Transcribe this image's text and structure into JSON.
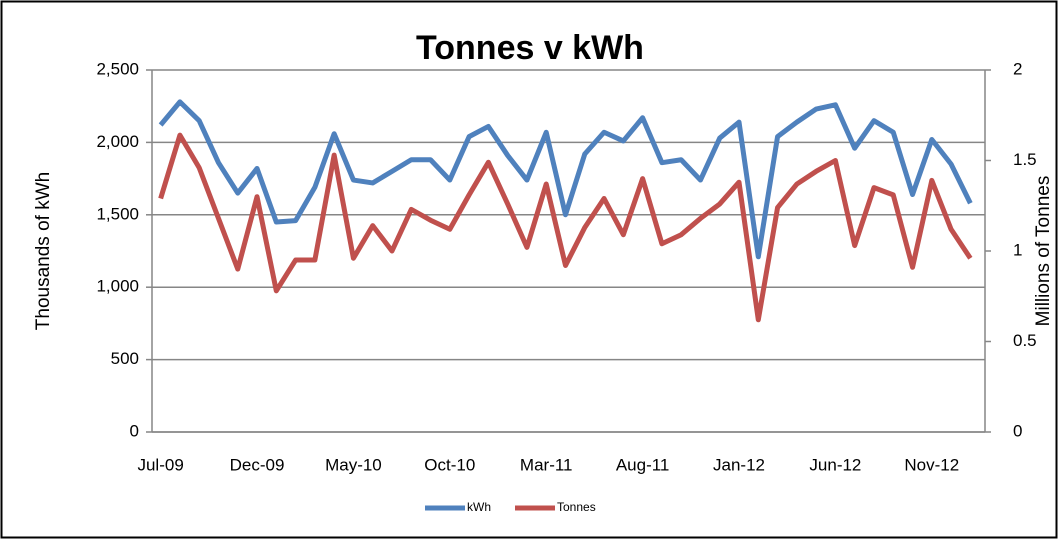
{
  "chart_data": {
    "type": "line",
    "title": "Tonnes v kWh",
    "y_label": "Thousands of kWh",
    "y2_label": "Millions of Tonnes",
    "categories": [
      "Jul-09",
      null,
      null,
      null,
      null,
      "Dec-09",
      null,
      null,
      null,
      null,
      "May-10",
      null,
      null,
      null,
      null,
      "Oct-10",
      null,
      null,
      null,
      null,
      "Mar-11",
      null,
      null,
      null,
      null,
      "Aug-11",
      null,
      null,
      null,
      null,
      "Jan-12",
      null,
      null,
      null,
      null,
      "Jun-12",
      null,
      null,
      null,
      null,
      "Nov-12",
      null,
      null
    ],
    "series": [
      {
        "name": "kWh",
        "color": "#4f81bd",
        "values": [
          2120,
          2280,
          2150,
          1860,
          1650,
          1820,
          1450,
          1460,
          1690,
          2060,
          1740,
          1720,
          1800,
          1880,
          1880,
          1740,
          2040,
          2110,
          1910,
          1740,
          2070,
          1500,
          1920,
          2070,
          2010,
          2170,
          1860,
          1880,
          1740,
          2030,
          2140,
          1210,
          2040,
          2140,
          2230,
          2260,
          1960,
          2150,
          2070,
          1640,
          2020,
          1850,
          1580
        ]
      },
      {
        "name": "Tonnes",
        "color": "#c0504d",
        "axis": "y2",
        "values": [
          1.29,
          1.64,
          1.46,
          1.18,
          0.9,
          1.3,
          0.78,
          0.95,
          0.95,
          1.53,
          0.96,
          1.14,
          1.0,
          1.23,
          1.17,
          1.12,
          1.31,
          1.49,
          1.26,
          1.02,
          1.37,
          0.92,
          1.13,
          1.29,
          1.09,
          1.4,
          1.04,
          1.09,
          1.18,
          1.26,
          1.38,
          0.62,
          1.24,
          1.37,
          1.44,
          1.5,
          1.03,
          1.35,
          1.31,
          0.91,
          1.39,
          1.12,
          0.96
        ]
      }
    ],
    "ylim": [
      0,
      2500
    ],
    "yticks": [
      0,
      500,
      {
        "value": 1000,
        "label": "1,000"
      },
      {
        "value": 1500,
        "label": "1,500"
      },
      {
        "value": 2000,
        "label": "2,000"
      },
      {
        "value": 2500,
        "label": "2,500"
      }
    ],
    "y2lim": [
      0,
      2
    ],
    "y2ticks": [
      0,
      0.5,
      1,
      1.5,
      2
    ],
    "grid": true,
    "legend": "bottom"
  }
}
